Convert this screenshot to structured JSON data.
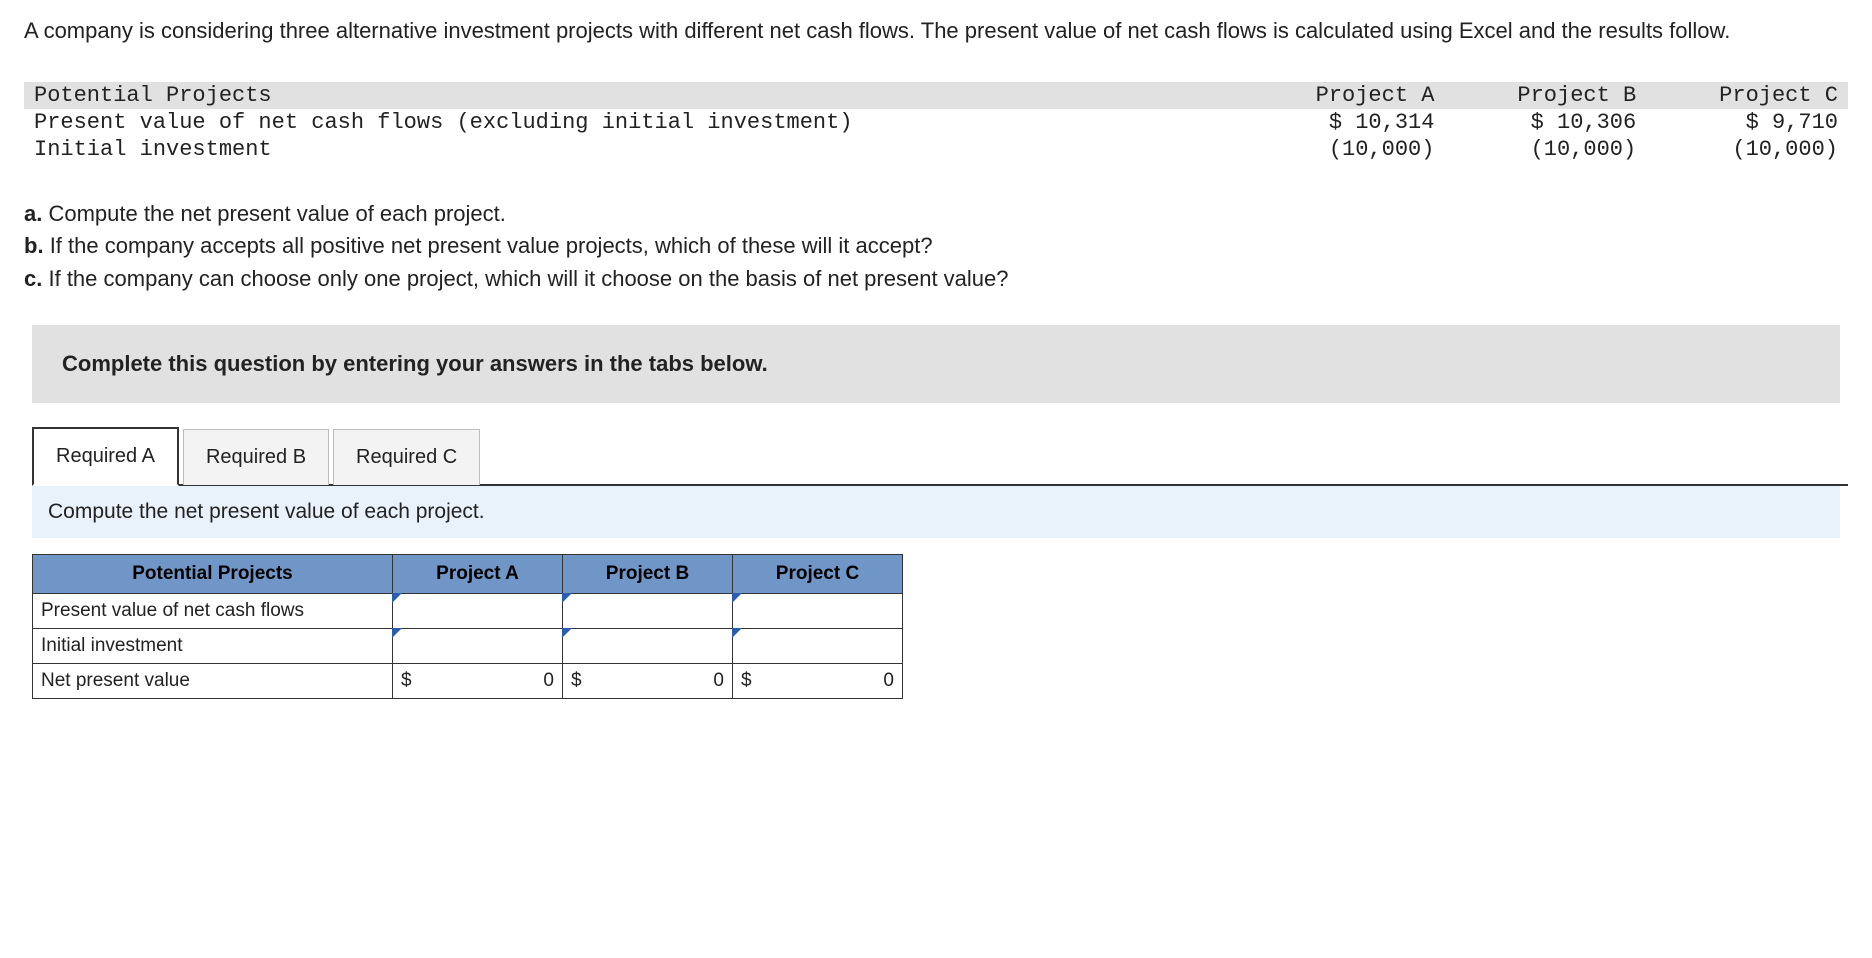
{
  "intro": "A company is considering three alternative investment projects with different net cash flows. The present value of net cash flows is calculated using Excel and the results follow.",
  "data_table": {
    "header_label": "Potential Projects",
    "cols": [
      "Project A",
      "Project B",
      "Project C"
    ],
    "rows": [
      {
        "label": "Present value of net cash flows (excluding initial investment)",
        "vals": [
          "$ 10,314",
          "$ 10,306",
          "$ 9,710"
        ]
      },
      {
        "label": "Initial investment",
        "vals": [
          "(10,000)",
          "(10,000)",
          "(10,000)"
        ]
      }
    ]
  },
  "questions": [
    {
      "tag": "a.",
      "text": "Compute the net present value of each project."
    },
    {
      "tag": "b.",
      "text": "If the company accepts all positive net present value projects, which of these will it accept?"
    },
    {
      "tag": "c.",
      "text": "If the company can choose only one project, which will it choose on the basis of net present value?"
    }
  ],
  "instruction": "Complete this question by entering your answers in the tabs below.",
  "tabs": [
    "Required A",
    "Required B",
    "Required C"
  ],
  "active_tab_index": 0,
  "sub_instruction": "Compute the net present value of each project.",
  "answer_table": {
    "row_header": "Potential Projects",
    "cols": [
      "Project A",
      "Project B",
      "Project C"
    ],
    "rows": [
      {
        "label": "Present value of net cash flows",
        "inputs": [
          {
            "editable": true
          },
          {
            "editable": true
          },
          {
            "editable": true
          }
        ]
      },
      {
        "label": "Initial investment",
        "inputs": [
          {
            "editable": true
          },
          {
            "editable": true
          },
          {
            "editable": true
          }
        ]
      },
      {
        "label": "Net present value",
        "inputs": [
          {
            "currency": "$",
            "value": "0"
          },
          {
            "currency": "$",
            "value": "0"
          },
          {
            "currency": "$",
            "value": "0"
          }
        ]
      }
    ]
  },
  "colors": {
    "header_bg": "#e1e1e1",
    "tab_border": "#333333",
    "table_header_bg": "#6f96c7",
    "subinstr_bg": "#e9f2fb",
    "marker": "#2a5db0"
  }
}
